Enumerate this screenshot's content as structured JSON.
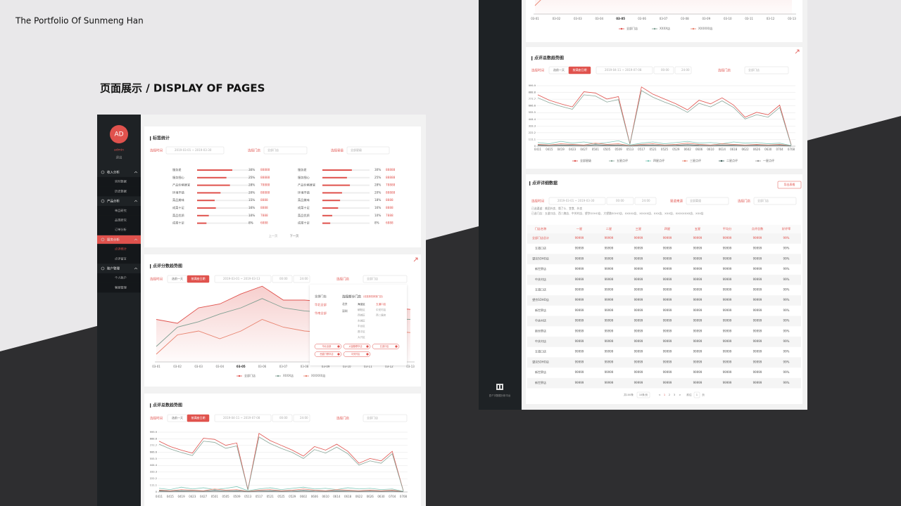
{
  "header": {
    "brand": "The Portfolio Of Sunmeng Han",
    "title": "页面展示  /  DISPLAY  OF  PAGES"
  },
  "sidebar": {
    "avatar": "AD",
    "user": "admin",
    "logout": "退出",
    "menu": [
      {
        "group": "收入分析",
        "items": [
          "实时数据",
          "历史数据"
        ]
      },
      {
        "group": "产品分析",
        "items": [
          "单品研究",
          "品类研究",
          "订单分析"
        ]
      },
      {
        "group": "服务分析",
        "items": [
          "点评统计",
          "点评留言"
        ]
      },
      {
        "group": "账户管理",
        "items": [
          "个人账户",
          "客服管理"
        ]
      }
    ]
  },
  "tag_stats": {
    "title": "标签统计",
    "time_label": "选择时间",
    "time_range": "2019-03-01  ~  2019-03-30",
    "store_label": "选择门店",
    "store": "全部门店",
    "star_label": "选择星级",
    "star": "全部星级",
    "items": [
      {
        "label": "服务差",
        "pct": 30,
        "pct_label": "30%",
        "count": "88888"
      },
      {
        "label": "服务细心",
        "pct": 25,
        "pct_label": "25%",
        "count": "88888"
      },
      {
        "label": "产品价格便宜",
        "pct": 28,
        "pct_label": "28%",
        "count": "78888"
      },
      {
        "label": "环境不错",
        "pct": 20,
        "pct_label": "20%",
        "count": "88888"
      },
      {
        "label": "菜品美味",
        "pct": 15,
        "pct_label": "15%",
        "count": "8888"
      },
      {
        "label": "成菜十足",
        "pct": 16,
        "pct_label": "16%",
        "count": "8888"
      },
      {
        "label": "菜品优质",
        "pct": 10,
        "pct_label": "10%",
        "count": "7888"
      },
      {
        "label": "成菜十足",
        "pct": 8,
        "pct_label": "8%",
        "count": "6888"
      },
      {
        "label": "服务差",
        "pct": 30,
        "pct_label": "30%",
        "count": "88888"
      },
      {
        "label": "服务细心",
        "pct": 25,
        "pct_label": "25%",
        "count": "88888"
      },
      {
        "label": "产品价格便宜",
        "pct": 28,
        "pct_label": "28%",
        "count": "78888"
      },
      {
        "label": "环境不错",
        "pct": 20,
        "pct_label": "20%",
        "count": "88888"
      },
      {
        "label": "菜品美味",
        "pct": 18,
        "pct_label": "18%",
        "count": "8888"
      },
      {
        "label": "成菜十足",
        "pct": 16,
        "pct_label": "16%",
        "count": "8888"
      },
      {
        "label": "菜品优质",
        "pct": 10,
        "pct_label": "10%",
        "count": "7888"
      },
      {
        "label": "成菜十足",
        "pct": 8,
        "pct_label": "8%",
        "count": "6888"
      }
    ],
    "prev": "上一页",
    "next": "下一页"
  },
  "score_panel": {
    "title": "点评分数趋势图",
    "time_label": "选择时间",
    "prev_day": "选前一天",
    "by_date": "按满座日期",
    "date_range": "2019-03-01  ~  2019-03-13",
    "time_from": "00:00",
    "time_to": "24:00",
    "store_label": "选择门店",
    "store": "全部门店",
    "popup": {
      "options": [
        "全部门店",
        "华北全部",
        "华南全部"
      ],
      "heading": "选择部分门店",
      "hint": "(请选择具体到门店)",
      "cities": [
        "北京",
        "深圳"
      ],
      "districts": [
        "海淀区",
        "朝阳区",
        "西城区",
        "东城区",
        "丰台区",
        "昌平区",
        "大兴区"
      ],
      "stores": [
        "五道口店",
        "中关村店",
        "西二旗店"
      ],
      "tags": [
        "华北全部",
        "大望路联华店",
        "五道口店",
        "西直门联华店",
        "中关村店"
      ]
    }
  },
  "total_panel": {
    "title": "点评总数趋势图",
    "time_label": "选择时间",
    "prev_day": "选前一天",
    "by_date": "按满座日期",
    "date_range": "2019-04-11  ~  2019-07-08",
    "time_from": "00:00",
    "time_to": "24:00",
    "store_label": "选择门店",
    "store": "全部门店"
  },
  "chart_data": [
    {
      "type": "line",
      "categories": [
        "03-01",
        "03-02",
        "03-03",
        "03-04",
        "03-05",
        "03-06",
        "03-07",
        "03-08",
        "03-09",
        "03-10",
        "03-11",
        "03-12",
        "03-13"
      ],
      "ylim": [
        0,
        100
      ],
      "series": [
        {
          "name": "全部门店",
          "color": "#e0524d",
          "values": [
            55,
            50,
            70,
            75,
            88,
            98,
            80,
            80,
            78,
            75,
            72,
            70,
            68
          ]
        },
        {
          "name": "XXXX店",
          "color": "#7f9f92",
          "values": [
            20,
            45,
            52,
            62,
            70,
            82,
            70,
            66,
            64,
            60,
            58,
            56,
            55
          ]
        },
        {
          "name": "XXXXXX店",
          "color": "#e8836f",
          "values": [
            10,
            35,
            40,
            30,
            40,
            55,
            45,
            40,
            38,
            40,
            42,
            40,
            38
          ]
        }
      ]
    },
    {
      "type": "line",
      "categories": [
        "0411",
        "0415",
        "0419",
        "0423",
        "0427",
        "0501",
        "0505",
        "0509",
        "0513",
        "0517",
        "0521",
        "0525",
        "0529",
        "0602",
        "0606",
        "0610",
        "0614",
        "0618",
        "0622",
        "0626",
        "0630",
        "0704",
        "0708"
      ],
      "ylim": [
        0,
        999.9
      ],
      "yticks": [
        0,
        111.1,
        222.2,
        333.3,
        444.4,
        555.5,
        666.6,
        777.7,
        888.8,
        999.9
      ],
      "grid": true,
      "series": [
        {
          "name": "全部星级",
          "color": "#e0524d",
          "values": [
            850,
            760,
            700,
            650,
            900,
            880,
            780,
            820,
            40,
            980,
            860,
            780,
            700,
            600,
            760,
            700,
            800,
            680,
            480,
            560,
            520,
            680,
            20
          ]
        },
        {
          "name": "五星点评",
          "color": "#8aa79a",
          "values": [
            800,
            720,
            660,
            610,
            850,
            830,
            730,
            770,
            30,
            920,
            810,
            730,
            660,
            560,
            710,
            650,
            750,
            640,
            450,
            520,
            480,
            640,
            15
          ]
        },
        {
          "name": "四星点评",
          "color": "#7fc7b8",
          "values": [
            60,
            40,
            80,
            50,
            70,
            40,
            60,
            90,
            20,
            50,
            70,
            40,
            60,
            80,
            50,
            60,
            40,
            70,
            50,
            60,
            40,
            50,
            10
          ]
        },
        {
          "name": "三星点评",
          "color": "#e8836f",
          "values": [
            30,
            20,
            40,
            30,
            20,
            50,
            30,
            40,
            10,
            30,
            40,
            20,
            30,
            50,
            30,
            20,
            40,
            30,
            20,
            30,
            20,
            30,
            5
          ]
        },
        {
          "name": "二星点评",
          "color": "#3a5a55",
          "values": [
            20,
            10,
            20,
            15,
            10,
            25,
            15,
            20,
            5,
            15,
            20,
            10,
            15,
            25,
            15,
            10,
            20,
            15,
            10,
            15,
            10,
            15,
            5
          ]
        },
        {
          "name": "一星点评",
          "color": "#999999",
          "values": [
            10,
            5,
            10,
            8,
            5,
            12,
            8,
            10,
            3,
            8,
            10,
            5,
            8,
            12,
            8,
            5,
            10,
            8,
            5,
            8,
            5,
            8,
            2
          ]
        }
      ]
    }
  ],
  "detail_panel": {
    "title": "点评详细数据",
    "export": "导出表格",
    "time_label": "选择时间",
    "date_range": "2019-03-01  ~  2019-03-30",
    "time_from": "00:00",
    "time_to": "24:00",
    "source_label": "渠道来源",
    "source": "全部渠道",
    "store_label": "选择门店",
    "store": "全部门店",
    "channels": "已选渠道：美团外卖、饿了么、堂食、外卖",
    "stores": "已选门店：五道口店、西二旗店、中关村店、望京SOHO店、大望路SOHO店、XXXXX店、XXXXX店、XXX店、XXX店、XXXXXXXX店、XXX店",
    "table": {
      "headers": [
        "门店名称",
        "一星",
        "二星",
        "三星",
        "四星",
        "五星",
        "平均分",
        "点评总数",
        "好评率"
      ],
      "rows": [
        [
          "全部门店总计",
          "99999",
          "99999",
          "99999",
          "99999",
          "99999",
          "99999",
          "99999",
          "99%"
        ],
        [
          "五道口店",
          "99999",
          "99999",
          "99999",
          "99999",
          "99999",
          "99999",
          "99999",
          "99%"
        ],
        [
          "望京SOHO店",
          "99999",
          "99999",
          "99999",
          "99999",
          "99999",
          "99999",
          "99999",
          "99%"
        ],
        [
          "新世界店",
          "99999",
          "99999",
          "99999",
          "99999",
          "99999",
          "99999",
          "99999",
          "99%"
        ],
        [
          "中关村店",
          "99999",
          "99999",
          "99999",
          "99999",
          "99999",
          "99999",
          "99999",
          "99%"
        ],
        [
          "五道口店",
          "99999",
          "99999",
          "99999",
          "99999",
          "99999",
          "99999",
          "99999",
          "99%"
        ],
        [
          "望京SOHO店",
          "99999",
          "99999",
          "99999",
          "99999",
          "99999",
          "99999",
          "99999",
          "99%"
        ],
        [
          "新世界店",
          "99999",
          "99999",
          "99999",
          "99999",
          "99999",
          "99999",
          "99999",
          "99%"
        ],
        [
          "中关村店",
          "99999",
          "99999",
          "99999",
          "99999",
          "99999",
          "99999",
          "99999",
          "99%"
        ],
        [
          "新世界店",
          "99999",
          "99999",
          "99999",
          "99999",
          "99999",
          "99999",
          "99999",
          "99%"
        ],
        [
          "中关村店",
          "99999",
          "99999",
          "99999",
          "99999",
          "99999",
          "99999",
          "99999",
          "99%"
        ],
        [
          "五道口店",
          "99999",
          "99999",
          "99999",
          "99999",
          "99999",
          "99999",
          "99999",
          "99%"
        ],
        [
          "望京SOHO店",
          "99999",
          "99999",
          "99999",
          "99999",
          "99999",
          "99999",
          "99999",
          "99%"
        ],
        [
          "新世界店",
          "99999",
          "99999",
          "99999",
          "99999",
          "99999",
          "99999",
          "99999",
          "99%"
        ],
        [
          "新世界店",
          "99999",
          "99999",
          "99999",
          "99999",
          "99999",
          "99999",
          "99999",
          "99%"
        ]
      ]
    },
    "pager": {
      "total": "共100条",
      "size": "10条/页",
      "prev": "<",
      "pages": [
        "1",
        "2",
        "3"
      ],
      "next": ">",
      "goto": "前往",
      "page": "1",
      "unit": "页"
    }
  },
  "platform": {
    "logo_text": "四个字数据分析平台"
  }
}
